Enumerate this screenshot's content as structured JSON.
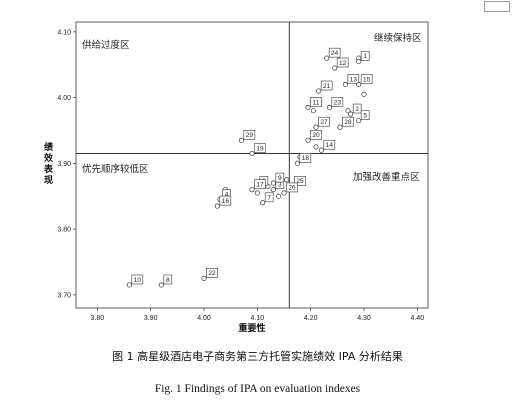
{
  "chart_data": {
    "type": "scatter",
    "xlabel": "重要性",
    "ylabel": "绩效表现",
    "xlim": [
      3.76,
      4.42
    ],
    "ylim": [
      3.68,
      4.115
    ],
    "x_ticks": [
      "3.80",
      "3.90",
      "4.00",
      "4.10",
      "4.20",
      "4.30",
      "4.40"
    ],
    "y_ticks": [
      "3.70",
      "3.80",
      "3.90",
      "4.00",
      "4.10"
    ],
    "reference_lines": {
      "x": 4.16,
      "y": 3.915
    },
    "quadrants": {
      "top_left": "供给过度区",
      "top_right": "继续保持区",
      "bottom_left": "优先顺序较低区",
      "bottom_right": "加强改善重点区"
    },
    "grid": false,
    "points": [
      {
        "label": "1",
        "x": 4.29,
        "y": 4.055
      },
      {
        "label": "2",
        "x": 4.275,
        "y": 3.975
      },
      {
        "label": "3",
        "x": 4.13,
        "y": 3.86
      },
      {
        "label": "4",
        "x": 4.03,
        "y": 3.845
      },
      {
        "label": "5",
        "x": 4.29,
        "y": 3.965
      },
      {
        "label": "6",
        "x": 4.1,
        "y": 3.865
      },
      {
        "label": "7",
        "x": 4.11,
        "y": 3.84
      },
      {
        "label": "8",
        "x": 3.92,
        "y": 3.715
      },
      {
        "label": "9",
        "x": 4.13,
        "y": 3.87
      },
      {
        "label": "10",
        "x": 3.86,
        "y": 3.715
      },
      {
        "label": "11",
        "x": 4.195,
        "y": 3.985
      },
      {
        "label": "12",
        "x": 4.245,
        "y": 4.045
      },
      {
        "label": "13",
        "x": 4.265,
        "y": 4.02
      },
      {
        "label": "14",
        "x": 4.22,
        "y": 3.92
      },
      {
        "label": "15",
        "x": 4.29,
        "y": 4.02
      },
      {
        "label": "16",
        "x": 4.025,
        "y": 3.835
      },
      {
        "label": "17",
        "x": 4.09,
        "y": 3.86
      },
      {
        "label": "18",
        "x": 4.175,
        "y": 3.9
      },
      {
        "label": "19",
        "x": 4.09,
        "y": 3.915
      },
      {
        "label": "20",
        "x": 4.195,
        "y": 3.935
      },
      {
        "label": "21",
        "x": 4.215,
        "y": 4.01
      },
      {
        "label": "22",
        "x": 4.0,
        "y": 3.725
      },
      {
        "label": "23",
        "x": 4.235,
        "y": 3.985
      },
      {
        "label": "24",
        "x": 4.23,
        "y": 4.06
      },
      {
        "label": "25",
        "x": 4.165,
        "y": 3.865
      },
      {
        "label": "26",
        "x": 4.15,
        "y": 3.855
      },
      {
        "label": "27",
        "x": 4.21,
        "y": 3.955
      },
      {
        "label": "28",
        "x": 4.255,
        "y": 3.955
      },
      {
        "label": "29",
        "x": 4.07,
        "y": 3.935
      }
    ],
    "extra_points": [
      {
        "x": 4.3,
        "y": 4.005
      },
      {
        "x": 4.29,
        "y": 4.06
      },
      {
        "x": 4.27,
        "y": 3.98
      },
      {
        "x": 4.205,
        "y": 3.98
      },
      {
        "x": 4.18,
        "y": 3.91
      },
      {
        "x": 4.155,
        "y": 3.875
      },
      {
        "x": 4.12,
        "y": 3.865
      },
      {
        "x": 4.14,
        "y": 3.85
      },
      {
        "x": 4.1,
        "y": 3.855
      },
      {
        "x": 4.04,
        "y": 3.86
      },
      {
        "x": 4.21,
        "y": 3.925
      }
    ]
  },
  "caption": {
    "chinese": "图 1 高星级酒店电子商务第三方托管实施绩效 IPA 分析结果",
    "english": "Fig. 1 Findings of IPA on evaluation indexes"
  }
}
